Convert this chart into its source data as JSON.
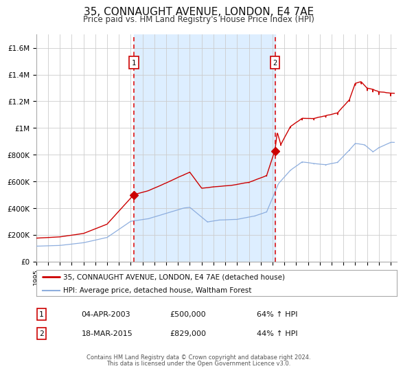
{
  "title": "35, CONNAUGHT AVENUE, LONDON, E4 7AE",
  "subtitle": "Price paid vs. HM Land Registry's House Price Index (HPI)",
  "title_fontsize": 11,
  "subtitle_fontsize": 9,
  "ylim": [
    0,
    1700000
  ],
  "xlim_start": 1995.0,
  "xlim_end": 2025.5,
  "background_color": "#ffffff",
  "plot_bg_color": "#ffffff",
  "grid_color": "#cccccc",
  "shade_color": "#ddeeff",
  "red_line_color": "#cc0000",
  "blue_line_color": "#88aadd",
  "dashed_line_color": "#dd0000",
  "marker_color": "#cc0000",
  "sale1_x": 2003.27,
  "sale1_y": 500000,
  "sale1_label": "1",
  "sale2_x": 2015.21,
  "sale2_y": 829000,
  "sale2_label": "2",
  "legend_line1": "35, CONNAUGHT AVENUE, LONDON, E4 7AE (detached house)",
  "legend_line2": "HPI: Average price, detached house, Waltham Forest",
  "table_row1_num": "1",
  "table_row1_date": "04-APR-2003",
  "table_row1_price": "£500,000",
  "table_row1_hpi": "64% ↑ HPI",
  "table_row2_num": "2",
  "table_row2_date": "18-MAR-2015",
  "table_row2_price": "£829,000",
  "table_row2_hpi": "44% ↑ HPI",
  "footer_line1": "Contains HM Land Registry data © Crown copyright and database right 2024.",
  "footer_line2": "This data is licensed under the Open Government Licence v3.0.",
  "yticks": [
    0,
    200000,
    400000,
    600000,
    800000,
    1000000,
    1200000,
    1400000,
    1600000
  ],
  "ytick_labels": [
    "£0",
    "£200K",
    "£400K",
    "£600K",
    "£800K",
    "£1M",
    "£1.2M",
    "£1.4M",
    "£1.6M"
  ],
  "xtick_years": [
    1995,
    1996,
    1997,
    1998,
    1999,
    2000,
    2001,
    2002,
    2003,
    2004,
    2005,
    2006,
    2007,
    2008,
    2009,
    2010,
    2011,
    2012,
    2013,
    2014,
    2015,
    2016,
    2017,
    2018,
    2019,
    2020,
    2021,
    2022,
    2023,
    2024,
    2025
  ]
}
